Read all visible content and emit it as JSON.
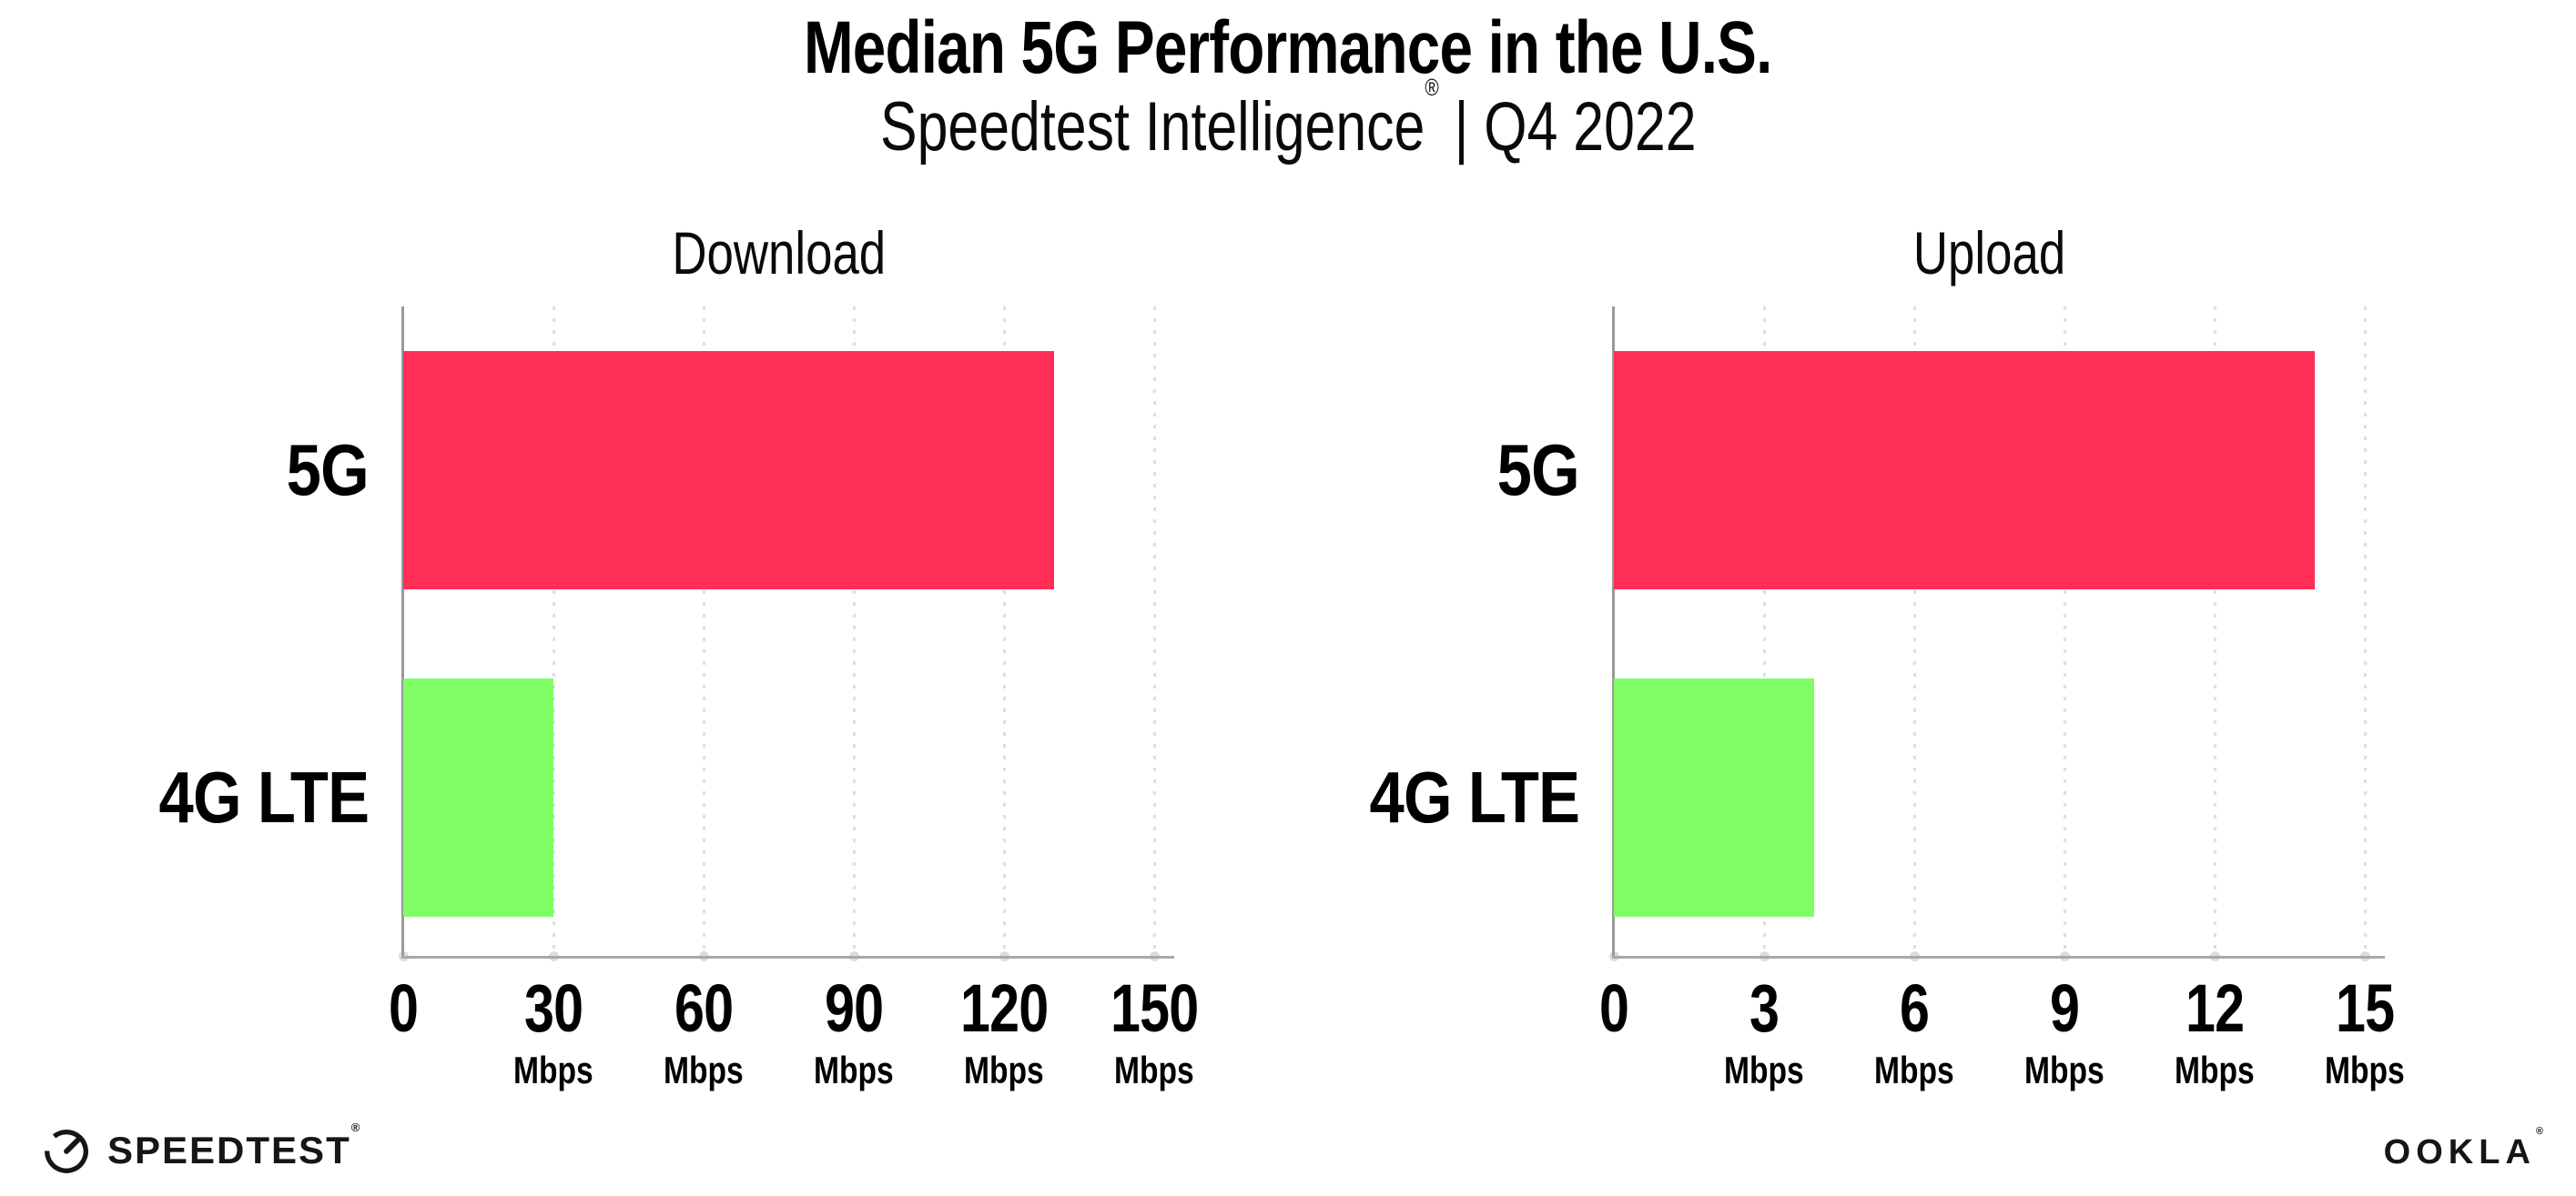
{
  "page": {
    "background": "#ffffff"
  },
  "header": {
    "title": "Median 5G Performance in the U.S.",
    "subtitle_brand": "Speedtest Intelligence",
    "subtitle_reg": "®",
    "subtitle_rest": " | Q4 2022"
  },
  "colors": {
    "bar_5g": "#ff2e56",
    "bar_4g_lte": "#7ffe66",
    "gridline": "#dcdee9",
    "axis_line": "#a8a8a8",
    "spine": "#9a9a9a",
    "text": "#000000"
  },
  "chart_data": [
    {
      "type": "bar",
      "orientation": "horizontal",
      "title": "Download",
      "categories": [
        "5G",
        "4G LTE"
      ],
      "values": [
        130,
        30
      ],
      "unit": "Mbps",
      "xlim": [
        0,
        150
      ],
      "xticks": [
        0,
        30,
        60,
        90,
        120,
        150
      ],
      "xtick_unit_label": "Mbps",
      "unit_label_on_zero_tick": false,
      "bar_colors": [
        "#ff2e56",
        "#7ffe66"
      ],
      "grid": "dotted-vertical",
      "legend": "none",
      "value_labels": "none"
    },
    {
      "type": "bar",
      "orientation": "horizontal",
      "title": "Upload",
      "categories": [
        "5G",
        "4G LTE"
      ],
      "values": [
        14,
        4
      ],
      "unit": "Mbps",
      "xlim": [
        0,
        15
      ],
      "xticks": [
        0,
        3,
        6,
        9,
        12,
        15
      ],
      "xtick_unit_label": "Mbps",
      "unit_label_on_zero_tick": false,
      "bar_colors": [
        "#ff2e56",
        "#7ffe66"
      ],
      "grid": "dotted-vertical",
      "legend": "none",
      "value_labels": "none"
    }
  ],
  "footer": {
    "speedtest_label": "SPEEDTEST",
    "speedtest_reg": "®",
    "ookla_label": "OOKLA",
    "ookla_reg": "®"
  }
}
